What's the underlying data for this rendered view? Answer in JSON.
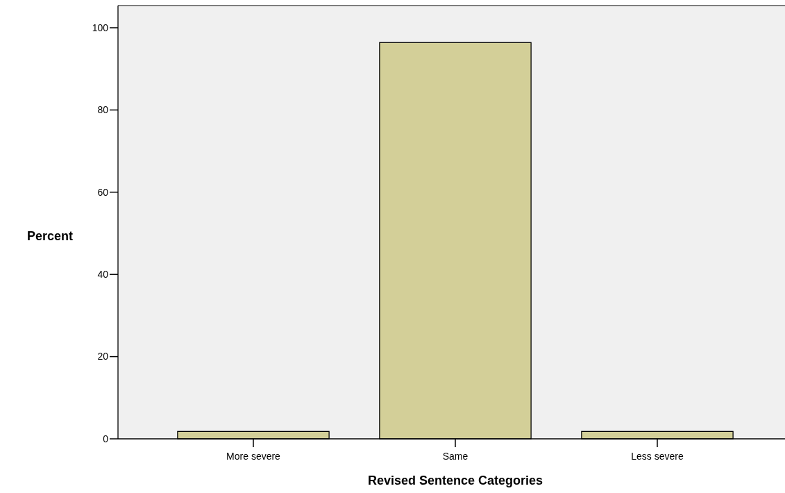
{
  "chart_data": {
    "type": "bar",
    "xlabel": "Revised Sentence Categories",
    "ylabel": "Percent",
    "categories": [
      "More severe",
      "Same",
      "Less severe"
    ],
    "values": [
      1.8,
      96.4,
      1.8
    ],
    "color": "#d3cf98",
    "ylim": [
      0,
      105.4
    ],
    "yticks": [
      0,
      20,
      40,
      60,
      80,
      100
    ],
    "grid": false
  }
}
